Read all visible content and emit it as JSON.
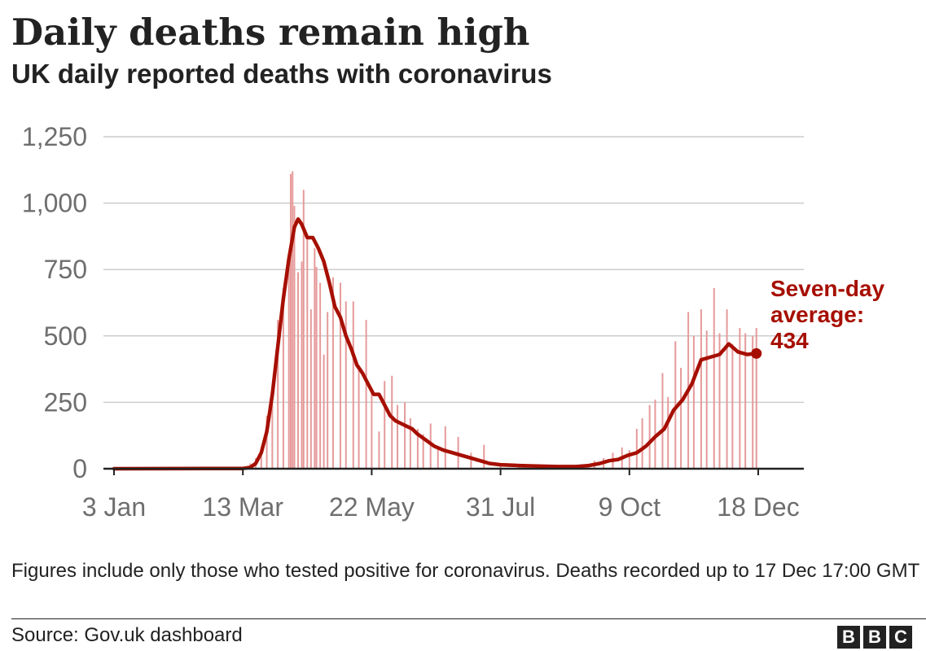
{
  "title": "Daily deaths remain high",
  "subtitle": "UK daily reported deaths with coronavirus",
  "note": "Figures include only those who tested positive for coronavirus. Deaths recorded up to 17 Dec 17:00 GMT",
  "source": "Source: Gov.uk dashboard",
  "logo_letters": [
    "B",
    "B",
    "C"
  ],
  "colors": {
    "bars": "#e69a9a",
    "average_line": "#a60f00",
    "annotation": "#a60f00",
    "axis_text": "#6e6e6e",
    "gridline": "#cccccc",
    "baseline": "#222222"
  },
  "chart_data": {
    "type": "bar",
    "title": "Daily deaths remain high",
    "subtitle": "UK daily reported deaths with coronavirus",
    "xlabel": "",
    "ylabel": "",
    "ylim": [
      0,
      1250
    ],
    "y_ticks": [
      0,
      250,
      500,
      750,
      1000,
      1250
    ],
    "y_tick_labels": [
      "0",
      "250",
      "500",
      "750",
      "1,000",
      "1,250"
    ],
    "x_ticks": [
      "3 Jan",
      "13 Mar",
      "22 May",
      "31 Jul",
      "9 Oct",
      "18 Dec"
    ],
    "x_range": [
      "3 Jan",
      "21 Dec"
    ],
    "grid": true,
    "series": [
      {
        "kind": "daily_deaths_bars",
        "x": [
          "3 Jan",
          "7 Mar",
          "13 Mar",
          "17 Mar",
          "20 Mar",
          "23 Mar",
          "26 Mar",
          "29 Mar",
          "1 Apr",
          "4 Apr",
          "7 Apr",
          "8 Apr",
          "9 Apr",
          "10 Apr",
          "12 Apr",
          "14 Apr",
          "15 Apr",
          "17 Apr",
          "19 Apr",
          "21 Apr",
          "22 Apr",
          "24 Apr",
          "26 Apr",
          "28 Apr",
          "1 May",
          "5 May",
          "8 May",
          "12 May",
          "15 May",
          "19 May",
          "22 May",
          "26 May",
          "29 May",
          "2 Jun",
          "5 Jun",
          "9 Jun",
          "12 Jun",
          "16 Jun",
          "19 Jun",
          "23 Jun",
          "27 Jun",
          "1 Jul",
          "8 Jul",
          "15 Jul",
          "22 Jul",
          "31 Jul",
          "10 Aug",
          "20 Aug",
          "31 Aug",
          "10 Sep",
          "20 Sep",
          "25 Sep",
          "30 Sep",
          "5 Oct",
          "9 Oct",
          "13 Oct",
          "16 Oct",
          "20 Oct",
          "23 Oct",
          "27 Oct",
          "30 Oct",
          "3 Nov",
          "6 Nov",
          "10 Nov",
          "13 Nov",
          "17 Nov",
          "20 Nov",
          "24 Nov",
          "27 Nov",
          "1 Dec",
          "4 Dec",
          "8 Dec",
          "11 Dec",
          "15 Dec",
          "17 Dec"
        ],
        "values": [
          0,
          1,
          2,
          20,
          40,
          80,
          200,
          280,
          560,
          680,
          780,
          1110,
          1120,
          990,
          740,
          780,
          1050,
          880,
          600,
          830,
          760,
          700,
          430,
          590,
          720,
          700,
          630,
          630,
          390,
          560,
          290,
          140,
          330,
          350,
          240,
          250,
          190,
          150,
          130,
          170,
          80,
          160,
          120,
          60,
          90,
          20,
          10,
          5,
          15,
          15,
          30,
          40,
          60,
          80,
          70,
          150,
          190,
          240,
          260,
          360,
          270,
          480,
          380,
          590,
          500,
          600,
          520,
          680,
          510,
          600,
          470,
          530,
          510,
          500,
          530
        ]
      },
      {
        "kind": "seven_day_average_line",
        "x": [
          "3 Jan",
          "13 Mar",
          "17 Mar",
          "20 Mar",
          "23 Mar",
          "26 Mar",
          "29 Mar",
          "1 Apr",
          "4 Apr",
          "7 Apr",
          "10 Apr",
          "12 Apr",
          "14 Apr",
          "17 Apr",
          "20 Apr",
          "23 Apr",
          "26 Apr",
          "29 Apr",
          "2 May",
          "5 May",
          "8 May",
          "11 May",
          "14 May",
          "17 May",
          "20 May",
          "23 May",
          "26 May",
          "29 May",
          "1 Jun",
          "4 Jun",
          "7 Jun",
          "10 Jun",
          "13 Jun",
          "16 Jun",
          "20 Jun",
          "25 Jun",
          "30 Jun",
          "5 Jul",
          "10 Jul",
          "15 Jul",
          "20 Jul",
          "25 Jul",
          "31 Jul",
          "10 Aug",
          "20 Aug",
          "31 Aug",
          "10 Sep",
          "17 Sep",
          "23 Sep",
          "28 Sep",
          "3 Oct",
          "8 Oct",
          "13 Oct",
          "18 Oct",
          "23 Oct",
          "28 Oct",
          "2 Nov",
          "7 Nov",
          "12 Nov",
          "17 Nov",
          "22 Nov",
          "27 Nov",
          "2 Dec",
          "7 Dec",
          "12 Dec",
          "17 Dec"
        ],
        "values": [
          0,
          1,
          5,
          20,
          60,
          140,
          280,
          460,
          640,
          790,
          910,
          940,
          920,
          870,
          870,
          830,
          780,
          700,
          610,
          570,
          500,
          450,
          390,
          360,
          320,
          280,
          280,
          240,
          200,
          180,
          170,
          160,
          150,
          130,
          110,
          85,
          70,
          60,
          50,
          40,
          30,
          20,
          15,
          12,
          10,
          8,
          8,
          12,
          20,
          30,
          35,
          50,
          60,
          85,
          120,
          150,
          220,
          260,
          320,
          410,
          420,
          430,
          470,
          440,
          430,
          434
        ]
      }
    ],
    "annotation": {
      "lines": [
        "Seven-day",
        "average:",
        "434"
      ],
      "value": 434,
      "anchor_x": "17 Dec"
    }
  }
}
